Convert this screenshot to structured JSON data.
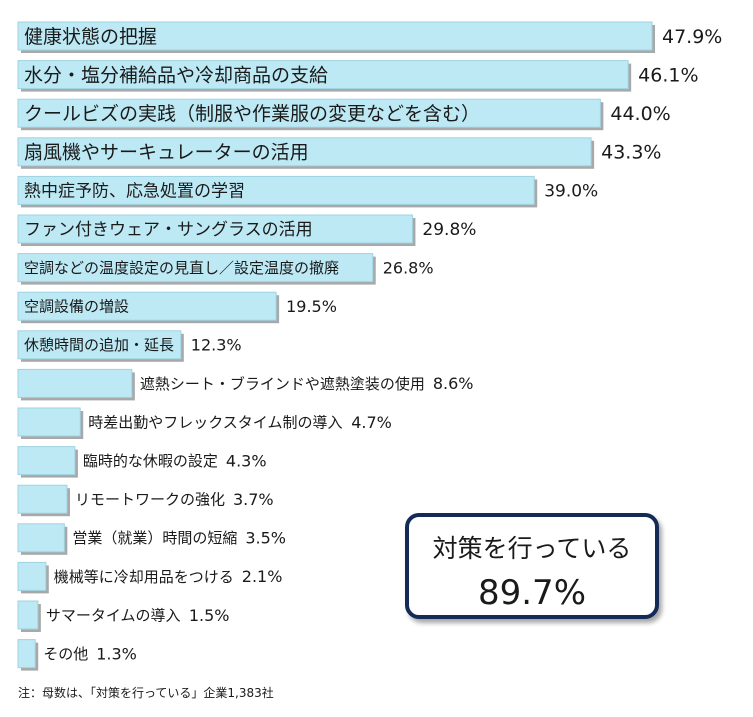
{
  "chart_data": {
    "type": "bar",
    "orientation": "horizontal",
    "value_suffix": "%",
    "bar_color": "#bde9f5",
    "categories": [
      "健康状態の把握",
      "水分・塩分補給品や冷却商品の支給",
      "クールビズの実践（制服や作業服の変更などを含む）",
      "扇風機やサーキュレーターの活用",
      "熱中症予防、応急処置の学習",
      "ファン付きウェア・サングラスの活用",
      "空調などの温度設定の見直し／設定温度の撤廃",
      "空調設備の増設",
      "休憩時間の追加・延長",
      "遮熱シート・ブラインドや遮熱塗装の使用",
      "時差出勤やフレックスタイム制の導入",
      "臨時的な休暇の設定",
      "リモートワークの強化",
      "営業（就業）時間の短縮",
      "機械等に冷却用品をつける",
      "サマータイムの導入",
      "その他"
    ],
    "values": [
      47.9,
      46.1,
      44.0,
      43.3,
      39.0,
      29.8,
      26.8,
      19.5,
      12.3,
      8.6,
      4.7,
      4.3,
      3.7,
      3.5,
      2.1,
      1.5,
      1.3
    ],
    "value_labels": [
      "47.9%",
      "46.1%",
      "44.0%",
      "43.3%",
      "39.0%",
      "29.8%",
      "26.8%",
      "19.5%",
      "12.3%",
      "8.6%",
      "4.7%",
      "4.3%",
      "3.7%",
      "3.5%",
      "2.1%",
      "1.5%",
      "1.3%"
    ],
    "xlim": [
      0,
      47.9
    ],
    "grid": false,
    "legend": "none"
  },
  "summary": {
    "label": "対策を行っている",
    "value": "89.7%"
  },
  "note": "注：母数は、「対策を行っている」企業1,383社"
}
